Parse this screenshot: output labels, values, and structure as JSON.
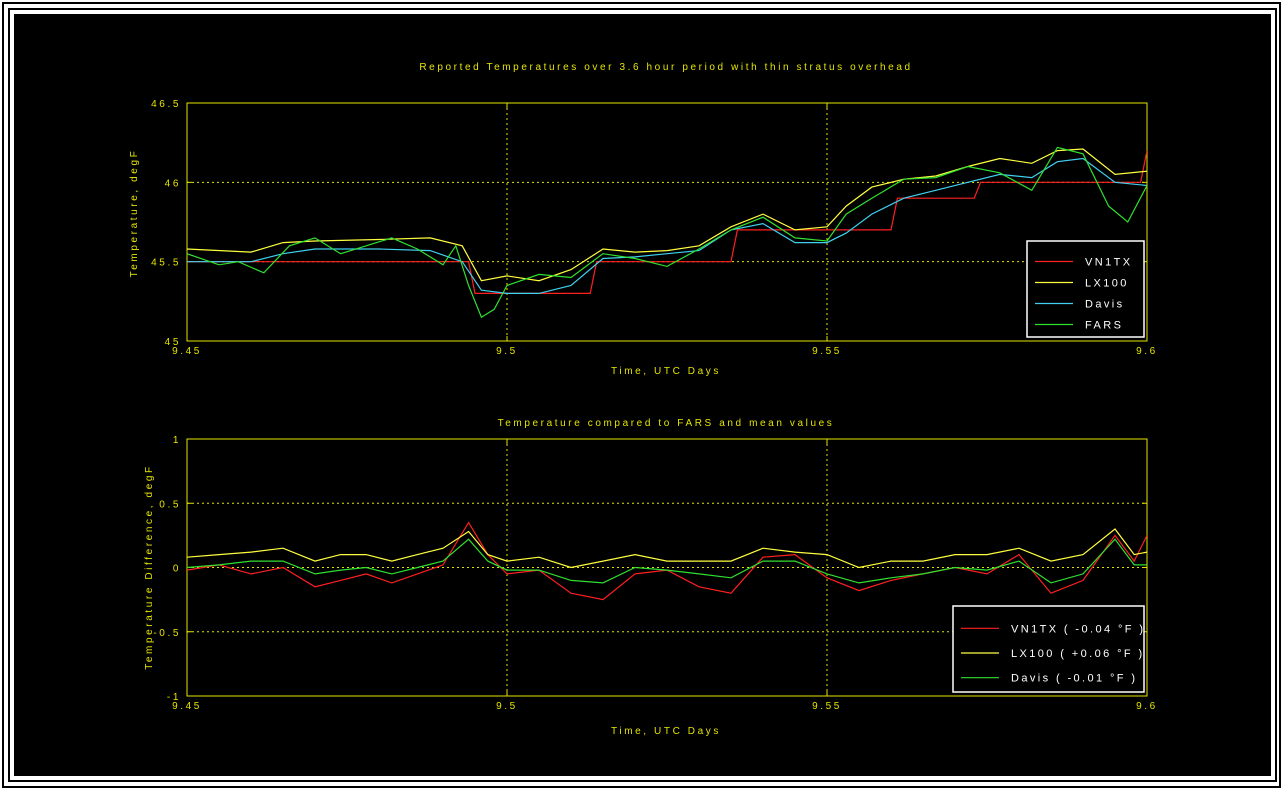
{
  "chart_data": [
    {
      "type": "line",
      "title": "Reported Temperatures over 3.6 hour period with thin stratus overhead",
      "xlabel": "Time, UTC Days",
      "ylabel": "Temperature, degF",
      "xlim": [
        9.45,
        9.6
      ],
      "ylim": [
        45,
        46.5
      ],
      "xticks": [
        "9.45",
        "9.5",
        "9.55",
        "9.6"
      ],
      "yticks": [
        "45",
        "45.5",
        "46",
        "46.5"
      ],
      "grid": true,
      "legend": "bottom-right",
      "series": [
        {
          "name": "VN1TX",
          "color": "#ff2020",
          "x": [
            9.45,
            9.494,
            9.495,
            9.513,
            9.514,
            9.535,
            9.536,
            9.56,
            9.561,
            9.573,
            9.574,
            9.599,
            9.6
          ],
          "y": [
            45.5,
            45.5,
            45.3,
            45.3,
            45.5,
            45.5,
            45.7,
            45.7,
            45.9,
            45.9,
            46.0,
            46.0,
            46.2
          ]
        },
        {
          "name": "LX100",
          "color": "#ffff40",
          "x": [
            9.45,
            9.46,
            9.465,
            9.47,
            9.48,
            9.488,
            9.493,
            9.496,
            9.5,
            9.505,
            9.51,
            9.515,
            9.52,
            9.525,
            9.53,
            9.535,
            9.54,
            9.545,
            9.55,
            9.553,
            9.557,
            9.562,
            9.567,
            9.572,
            9.577,
            9.582,
            9.586,
            9.59,
            9.595,
            9.6
          ],
          "y": [
            45.58,
            45.56,
            45.62,
            45.63,
            45.64,
            45.65,
            45.6,
            45.38,
            45.41,
            45.38,
            45.45,
            45.58,
            45.56,
            45.57,
            45.6,
            45.72,
            45.8,
            45.7,
            45.72,
            45.85,
            45.97,
            46.02,
            46.04,
            46.1,
            46.15,
            46.12,
            46.2,
            46.21,
            46.05,
            46.07
          ]
        },
        {
          "name": "Davis",
          "color": "#40d0f0",
          "x": [
            9.45,
            9.46,
            9.465,
            9.47,
            9.48,
            9.488,
            9.493,
            9.496,
            9.5,
            9.505,
            9.51,
            9.515,
            9.52,
            9.525,
            9.53,
            9.535,
            9.54,
            9.545,
            9.55,
            9.553,
            9.557,
            9.562,
            9.567,
            9.572,
            9.577,
            9.582,
            9.586,
            9.59,
            9.595,
            9.6
          ],
          "y": [
            45.5,
            45.5,
            45.55,
            45.58,
            45.58,
            45.57,
            45.5,
            45.32,
            45.3,
            45.3,
            45.35,
            45.52,
            45.53,
            45.55,
            45.57,
            45.7,
            45.74,
            45.62,
            45.62,
            45.68,
            45.8,
            45.9,
            45.95,
            46.0,
            46.05,
            46.03,
            46.13,
            46.15,
            46.0,
            45.98
          ]
        },
        {
          "name": "FARS",
          "color": "#30e030",
          "x": [
            9.45,
            9.455,
            9.458,
            9.462,
            9.466,
            9.47,
            9.474,
            9.478,
            9.482,
            9.486,
            9.49,
            9.492,
            9.494,
            9.496,
            9.498,
            9.5,
            9.505,
            9.51,
            9.515,
            9.52,
            9.525,
            9.53,
            9.535,
            9.54,
            9.545,
            9.55,
            9.553,
            9.557,
            9.562,
            9.567,
            9.572,
            9.577,
            9.582,
            9.586,
            9.59,
            9.594,
            9.597,
            9.6
          ],
          "y": [
            45.55,
            45.48,
            45.5,
            45.43,
            45.6,
            45.65,
            45.55,
            45.6,
            45.65,
            45.58,
            45.48,
            45.6,
            45.35,
            45.15,
            45.2,
            45.35,
            45.42,
            45.4,
            45.55,
            45.52,
            45.47,
            45.58,
            45.7,
            45.78,
            45.65,
            45.63,
            45.8,
            45.9,
            46.02,
            46.03,
            46.1,
            46.06,
            45.95,
            46.22,
            46.18,
            45.85,
            45.75,
            45.98
          ]
        }
      ]
    },
    {
      "type": "line",
      "title": "Temperature compared to FARS and mean values",
      "xlabel": "Time, UTC Days",
      "ylabel": "Temperature Difference, degF",
      "xlim": [
        9.45,
        9.6
      ],
      "ylim": [
        -1,
        1
      ],
      "xticks": [
        "9.45",
        "9.5",
        "9.55",
        "9.6"
      ],
      "yticks": [
        "-1",
        "-0.5",
        "0",
        "0.5",
        "1"
      ],
      "grid": true,
      "legend": "bottom-right",
      "series": [
        {
          "name": "VN1TX ( -0.04 °F )",
          "color": "#ff2020",
          "x": [
            9.45,
            9.455,
            9.46,
            9.465,
            9.47,
            9.474,
            9.478,
            9.482,
            9.486,
            9.49,
            9.494,
            9.497,
            9.5,
            9.505,
            9.51,
            9.515,
            9.52,
            9.525,
            9.53,
            9.535,
            9.54,
            9.545,
            9.55,
            9.555,
            9.56,
            9.565,
            9.57,
            9.575,
            9.58,
            9.585,
            9.59,
            9.595,
            9.598,
            9.6
          ],
          "y": [
            -0.02,
            0.02,
            -0.05,
            0.0,
            -0.15,
            -0.1,
            -0.05,
            -0.12,
            -0.05,
            0.02,
            0.35,
            0.1,
            -0.05,
            -0.02,
            -0.2,
            -0.25,
            -0.05,
            -0.02,
            -0.15,
            -0.2,
            0.08,
            0.1,
            -0.08,
            -0.18,
            -0.1,
            -0.05,
            0.0,
            -0.05,
            0.1,
            -0.2,
            -0.1,
            0.25,
            0.05,
            0.25
          ]
        },
        {
          "name": "LX100 ( +0.06 °F )",
          "color": "#ffff40",
          "x": [
            9.45,
            9.455,
            9.46,
            9.465,
            9.47,
            9.474,
            9.478,
            9.482,
            9.486,
            9.49,
            9.494,
            9.497,
            9.5,
            9.505,
            9.51,
            9.515,
            9.52,
            9.525,
            9.53,
            9.535,
            9.54,
            9.545,
            9.55,
            9.555,
            9.56,
            9.565,
            9.57,
            9.575,
            9.58,
            9.585,
            9.59,
            9.595,
            9.598,
            9.6
          ],
          "y": [
            0.08,
            0.1,
            0.12,
            0.15,
            0.05,
            0.1,
            0.1,
            0.05,
            0.1,
            0.15,
            0.28,
            0.1,
            0.05,
            0.08,
            0.0,
            0.05,
            0.1,
            0.05,
            0.05,
            0.05,
            0.15,
            0.12,
            0.1,
            0.0,
            0.05,
            0.05,
            0.1,
            0.1,
            0.15,
            0.05,
            0.1,
            0.3,
            0.1,
            0.12
          ]
        },
        {
          "name": "Davis ( -0.01 °F )",
          "color": "#30e030",
          "x": [
            9.45,
            9.455,
            9.46,
            9.465,
            9.47,
            9.474,
            9.478,
            9.482,
            9.486,
            9.49,
            9.494,
            9.497,
            9.5,
            9.505,
            9.51,
            9.515,
            9.52,
            9.525,
            9.53,
            9.535,
            9.54,
            9.545,
            9.55,
            9.555,
            9.56,
            9.565,
            9.57,
            9.575,
            9.58,
            9.585,
            9.59,
            9.595,
            9.598,
            9.6
          ],
          "y": [
            0.0,
            0.02,
            0.05,
            0.05,
            -0.05,
            -0.02,
            0.0,
            -0.05,
            0.0,
            0.05,
            0.22,
            0.05,
            -0.02,
            -0.02,
            -0.1,
            -0.12,
            0.0,
            -0.02,
            -0.05,
            -0.08,
            0.05,
            0.05,
            -0.05,
            -0.12,
            -0.08,
            -0.05,
            0.0,
            -0.02,
            0.05,
            -0.12,
            -0.05,
            0.22,
            0.02,
            0.02
          ]
        }
      ]
    }
  ]
}
